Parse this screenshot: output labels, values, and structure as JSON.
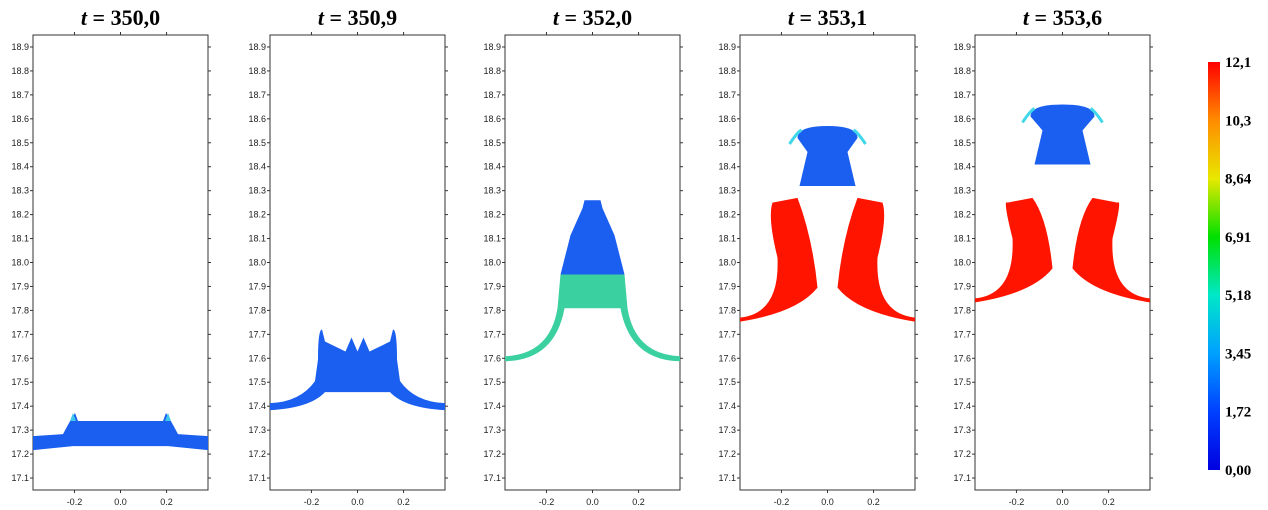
{
  "chart_data": [
    {
      "type": "heatmap",
      "title_var": "t",
      "title_value": "= 350,0",
      "xlim": [
        -0.38,
        0.38
      ],
      "ylim": [
        17.05,
        18.95
      ],
      "xticks": [
        "-0.2",
        "0.0",
        "0.2"
      ],
      "yticks": [
        "17.1",
        "17.2",
        "17.3",
        "17.4",
        "17.5",
        "17.6",
        "17.7",
        "17.8",
        "17.9",
        "18.0",
        "18.1",
        "18.2",
        "18.3",
        "18.4",
        "18.5",
        "18.6",
        "18.7",
        "18.8",
        "18.9"
      ],
      "interface_y": 17.25,
      "plume_top_y": 17.33
    },
    {
      "type": "heatmap",
      "title_var": "t",
      "title_value": "= 350,9",
      "xlim": [
        -0.38,
        0.38
      ],
      "ylim": [
        17.05,
        18.95
      ],
      "xticks": [
        "-0.2",
        "0.0",
        "0.2"
      ],
      "yticks": [
        "17.1",
        "17.2",
        "17.3",
        "17.4",
        "17.5",
        "17.6",
        "17.7",
        "17.8",
        "17.9",
        "18.0",
        "18.1",
        "18.2",
        "18.3",
        "18.4",
        "18.5",
        "18.6",
        "18.7",
        "18.8",
        "18.9"
      ],
      "interface_y": 17.4,
      "plume_top_y": 17.72
    },
    {
      "type": "heatmap",
      "title_var": "t",
      "title_value": "= 352,0",
      "xlim": [
        -0.38,
        0.38
      ],
      "ylim": [
        17.05,
        18.95
      ],
      "xticks": [
        "-0.2",
        "0.0",
        "0.2"
      ],
      "yticks": [
        "17.1",
        "17.2",
        "17.3",
        "17.4",
        "17.5",
        "17.6",
        "17.7",
        "17.8",
        "17.9",
        "18.0",
        "18.1",
        "18.2",
        "18.3",
        "18.4",
        "18.5",
        "18.6",
        "18.7",
        "18.8",
        "18.9"
      ],
      "interface_y": 17.6,
      "plume_top_y": 18.26
    },
    {
      "type": "heatmap",
      "title_var": "t",
      "title_value": "= 353,1",
      "xlim": [
        -0.38,
        0.38
      ],
      "ylim": [
        17.05,
        18.95
      ],
      "xticks": [
        "-0.2",
        "0.0",
        "0.2"
      ],
      "yticks": [
        "17.1",
        "17.2",
        "17.3",
        "17.4",
        "17.5",
        "17.6",
        "17.7",
        "17.8",
        "17.9",
        "18.0",
        "18.1",
        "18.2",
        "18.3",
        "18.4",
        "18.5",
        "18.6",
        "18.7",
        "18.8",
        "18.9"
      ],
      "interface_y": 17.77,
      "plume_top_y": 18.57
    },
    {
      "type": "heatmap",
      "title_var": "t",
      "title_value": "= 353,6",
      "xlim": [
        -0.38,
        0.38
      ],
      "ylim": [
        17.05,
        18.95
      ],
      "xticks": [
        "-0.2",
        "0.0",
        "0.2"
      ],
      "yticks": [
        "17.1",
        "17.2",
        "17.3",
        "17.4",
        "17.5",
        "17.6",
        "17.7",
        "17.8",
        "17.9",
        "18.0",
        "18.1",
        "18.2",
        "18.3",
        "18.4",
        "18.5",
        "18.6",
        "18.7",
        "18.8",
        "18.9"
      ],
      "interface_y": 17.85,
      "plume_top_y": 18.66
    }
  ],
  "colorbar": {
    "labels": [
      "12,1",
      "10,3",
      "8,64",
      "6,91",
      "5,18",
      "3,45",
      "1,72",
      "0,00"
    ],
    "min": 0.0,
    "max": 12.1,
    "colors": [
      "#ff0000",
      "#ff8c00",
      "#e8e800",
      "#00e000",
      "#00e8c8",
      "#00a0ff",
      "#0040ff",
      "#0000e0"
    ]
  }
}
